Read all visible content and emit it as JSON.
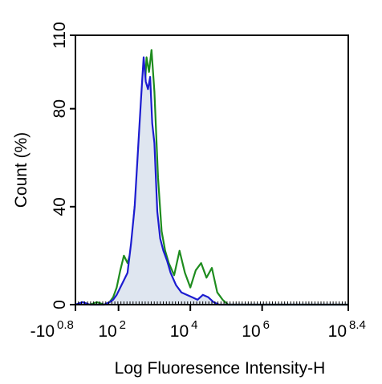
{
  "chart_data": {
    "type": "line",
    "title": "",
    "xlabel": "Log Fluoresence Intensity-H",
    "ylabel": "Count  (%)",
    "xscale": "log",
    "xlim": [
      0.8,
      8.4
    ],
    "ylim": [
      0,
      110
    ],
    "grid": false,
    "legend": "none",
    "y_ticks": [
      {
        "value": 0,
        "label": "0"
      },
      {
        "value": 40,
        "label": "40"
      },
      {
        "value": 80,
        "label": "80"
      },
      {
        "value": 110,
        "label": "110"
      }
    ],
    "x_ticks": [
      {
        "value": 0.8,
        "base": "-10",
        "exp": "0.8"
      },
      {
        "value": 2,
        "base": "10",
        "exp": "2"
      },
      {
        "value": 4,
        "base": "10",
        "exp": "4"
      },
      {
        "value": 6,
        "base": "10",
        "exp": "6"
      },
      {
        "value": 8.4,
        "base": "10",
        "exp": "8.4"
      }
    ],
    "series": [
      {
        "color": "#1e8c1e",
        "filled": false,
        "x": [
          0.8,
          1.0,
          1.2,
          1.4,
          1.6,
          1.75,
          1.85,
          1.95,
          2.05,
          2.15,
          2.25,
          2.35,
          2.45,
          2.55,
          2.65,
          2.72,
          2.78,
          2.85,
          2.92,
          3.0,
          3.1,
          3.2,
          3.3,
          3.4,
          3.55,
          3.7,
          3.85,
          4.0,
          4.15,
          4.3,
          4.45,
          4.6,
          4.75,
          4.9,
          5.05,
          5.2,
          5.5,
          6.0,
          7.0,
          8.4
        ],
        "values": [
          0,
          1,
          0,
          1,
          0,
          1,
          3,
          7,
          14,
          20,
          17,
          22,
          40,
          42,
          58,
          85,
          101,
          95,
          104,
          87,
          52,
          30,
          22,
          17,
          12,
          22,
          13,
          7,
          14,
          17,
          11,
          15,
          5,
          2,
          0,
          0,
          0,
          0,
          0,
          0
        ]
      },
      {
        "color": "#1c1cd0",
        "filled": true,
        "fill": "#dfe6f0",
        "x": [
          0.8,
          1.0,
          1.2,
          1.4,
          1.6,
          1.75,
          1.85,
          1.95,
          2.05,
          2.15,
          2.25,
          2.35,
          2.45,
          2.55,
          2.63,
          2.7,
          2.76,
          2.82,
          2.88,
          2.94,
          3.0,
          3.08,
          3.16,
          3.25,
          3.35,
          3.45,
          3.6,
          3.75,
          3.9,
          4.05,
          4.2,
          4.35,
          4.5,
          4.65,
          4.8,
          5.0,
          5.5,
          6.0,
          7.0,
          8.4
        ],
        "values": [
          0,
          1,
          0,
          0,
          0,
          1,
          2,
          4,
          7,
          10,
          13,
          25,
          40,
          65,
          85,
          101,
          91,
          88,
          93,
          74,
          66,
          38,
          27,
          22,
          18,
          13,
          8,
          5,
          4,
          3,
          2,
          4,
          3,
          1,
          0,
          0,
          0,
          0,
          0,
          0
        ]
      }
    ]
  }
}
